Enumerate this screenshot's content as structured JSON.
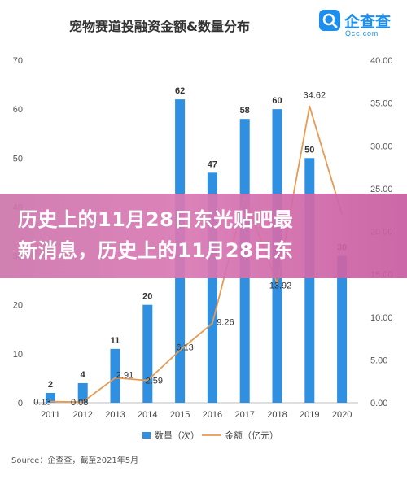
{
  "logo": {
    "name": "企查查",
    "domain": "Qcc.com"
  },
  "overlay": {
    "line1": "历史上的11月28日东光贴吧最",
    "line2": "新消息，历史上的11月28日东"
  },
  "source": "Source：企查查，截至2021年5月",
  "colors": {
    "bar": "#2f8fe0",
    "line": "#e69a52",
    "overlay": "#d277b2",
    "logo": "#1a8ff0"
  },
  "chart_data": {
    "type": "bar",
    "title": "宠物赛道投融资金额&数量分布",
    "categories": [
      "2011",
      "2012",
      "2013",
      "2014",
      "2015",
      "2016",
      "2017",
      "2018",
      "2019",
      "2020"
    ],
    "series": [
      {
        "name": "数量（次）",
        "type": "bar",
        "axis": "left",
        "values": [
          2,
          4,
          11,
          20,
          62,
          47,
          58,
          60,
          50,
          30
        ]
      },
      {
        "name": "金额（亿元）",
        "type": "line",
        "axis": "right",
        "values": [
          0.13,
          0.08,
          2.91,
          2.59,
          6.13,
          9.26,
          24.0,
          13.92,
          34.62,
          22.0
        ]
      }
    ],
    "value_labels": {
      "bar": [
        "2",
        "4",
        "11",
        "20",
        "62",
        "47",
        "58",
        "60",
        "50",
        "30"
      ],
      "line": [
        "0.13",
        "0.08",
        "2.91",
        "2.59",
        "6.13",
        "9.26",
        "",
        "13.92",
        "34.62",
        ""
      ]
    },
    "y_left": {
      "min": 0,
      "max": 70,
      "ticks": [
        "0",
        "10",
        "20",
        "30",
        "40",
        "50",
        "60",
        "70"
      ]
    },
    "y_right": {
      "min": 0,
      "max": 40,
      "ticks": [
        "0.00",
        "5.00",
        "10.00",
        "15.00",
        "20.00",
        "25.00",
        "30.00",
        "35.00",
        "40.00"
      ]
    },
    "legend": {
      "position": "bottom",
      "items": [
        "数量（次）",
        "金额（亿元）"
      ]
    },
    "grid": false
  }
}
